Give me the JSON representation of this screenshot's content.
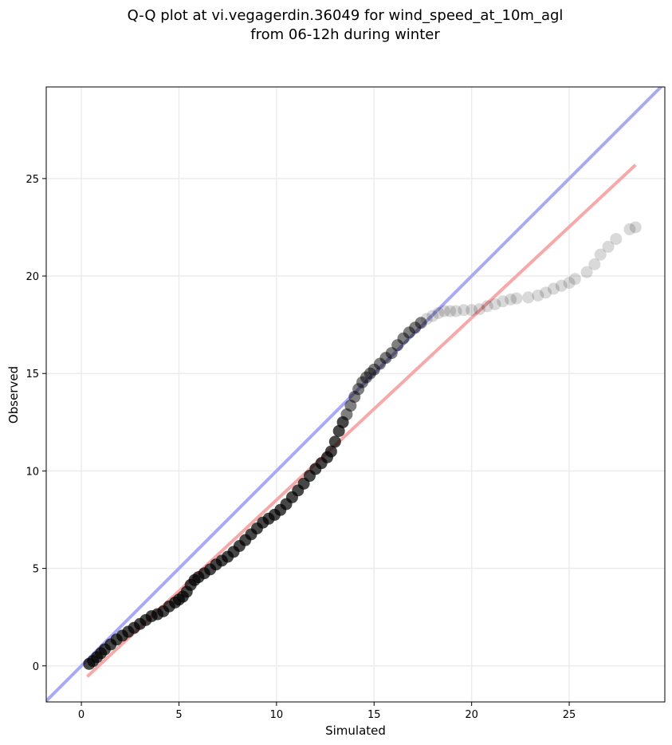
{
  "chart_data": {
    "type": "scatter",
    "title": [
      "Q-Q plot at vi.vegagerdin.36049 for wind_speed_at_10m_agl",
      "from 06-12h during winter"
    ],
    "xlabel": "Simulated",
    "ylabel": "Observed",
    "xlim": [
      -1.8,
      29.9
    ],
    "ylim": [
      -1.85,
      29.7
    ],
    "xticks": [
      0,
      5,
      10,
      15,
      20,
      25
    ],
    "yticks": [
      0,
      5,
      10,
      15,
      20,
      25
    ],
    "grid": true,
    "legend": "none",
    "colors": {
      "identity_line": "#aaaaf4",
      "fit_line": "#f7a8a8",
      "points": "#000000",
      "frame": "#000000"
    },
    "identity_line": {
      "x": [
        -1.8,
        29.9
      ],
      "y": [
        -1.8,
        29.9
      ]
    },
    "fit_line": {
      "x": [
        0.3,
        28.4
      ],
      "y": [
        -0.55,
        25.7
      ]
    },
    "series": [
      {
        "x": [
          0.4,
          0.6,
          0.8,
          1.0,
          1.2,
          1.5,
          1.8,
          2.1,
          2.4,
          2.7,
          3.0,
          3.3,
          3.6,
          3.9,
          4.2,
          4.5,
          4.8,
          5.0,
          5.2,
          5.4,
          5.6,
          5.8,
          6.0,
          6.3,
          6.6,
          6.9,
          7.2,
          7.5,
          7.8,
          8.1,
          8.4,
          8.7,
          9.0,
          9.3,
          9.6,
          9.9,
          10.2,
          10.5,
          10.8,
          11.1,
          11.4,
          11.7,
          12.0,
          12.3,
          12.6,
          12.8,
          13.0,
          13.2,
          13.4,
          13.6,
          13.8,
          14.0,
          14.2,
          14.4,
          14.6,
          14.8,
          15.0,
          15.3,
          15.6,
          15.9,
          16.2,
          16.5,
          16.8,
          17.1,
          17.4,
          17.7,
          18.0,
          18.3,
          18.6,
          18.9,
          19.2,
          19.6,
          20.0,
          20.4,
          20.8,
          21.2,
          21.6,
          22.0,
          22.3,
          22.9,
          23.4,
          23.8,
          24.2,
          24.6,
          25.0,
          25.3,
          25.9,
          26.3,
          26.6,
          27.0,
          27.4,
          28.1,
          28.4
        ],
        "y": [
          0.1,
          0.25,
          0.45,
          0.65,
          0.85,
          1.1,
          1.35,
          1.55,
          1.75,
          1.95,
          2.15,
          2.35,
          2.55,
          2.65,
          2.8,
          3.05,
          3.25,
          3.4,
          3.55,
          3.8,
          4.15,
          4.4,
          4.55,
          4.75,
          4.95,
          5.2,
          5.4,
          5.6,
          5.85,
          6.15,
          6.45,
          6.75,
          7.05,
          7.35,
          7.55,
          7.75,
          8.0,
          8.3,
          8.65,
          9.0,
          9.35,
          9.75,
          10.1,
          10.4,
          10.7,
          11.0,
          11.5,
          12.05,
          12.5,
          12.9,
          13.35,
          13.8,
          14.2,
          14.55,
          14.8,
          15.0,
          15.2,
          15.5,
          15.8,
          16.05,
          16.45,
          16.8,
          17.1,
          17.35,
          17.6,
          17.8,
          17.95,
          18.1,
          18.2,
          18.2,
          18.2,
          18.25,
          18.25,
          18.3,
          18.45,
          18.55,
          18.7,
          18.8,
          18.85,
          18.9,
          19.0,
          19.15,
          19.35,
          19.5,
          19.65,
          19.85,
          20.2,
          20.6,
          21.1,
          21.5,
          21.9,
          22.4,
          22.5
        ]
      }
    ]
  }
}
